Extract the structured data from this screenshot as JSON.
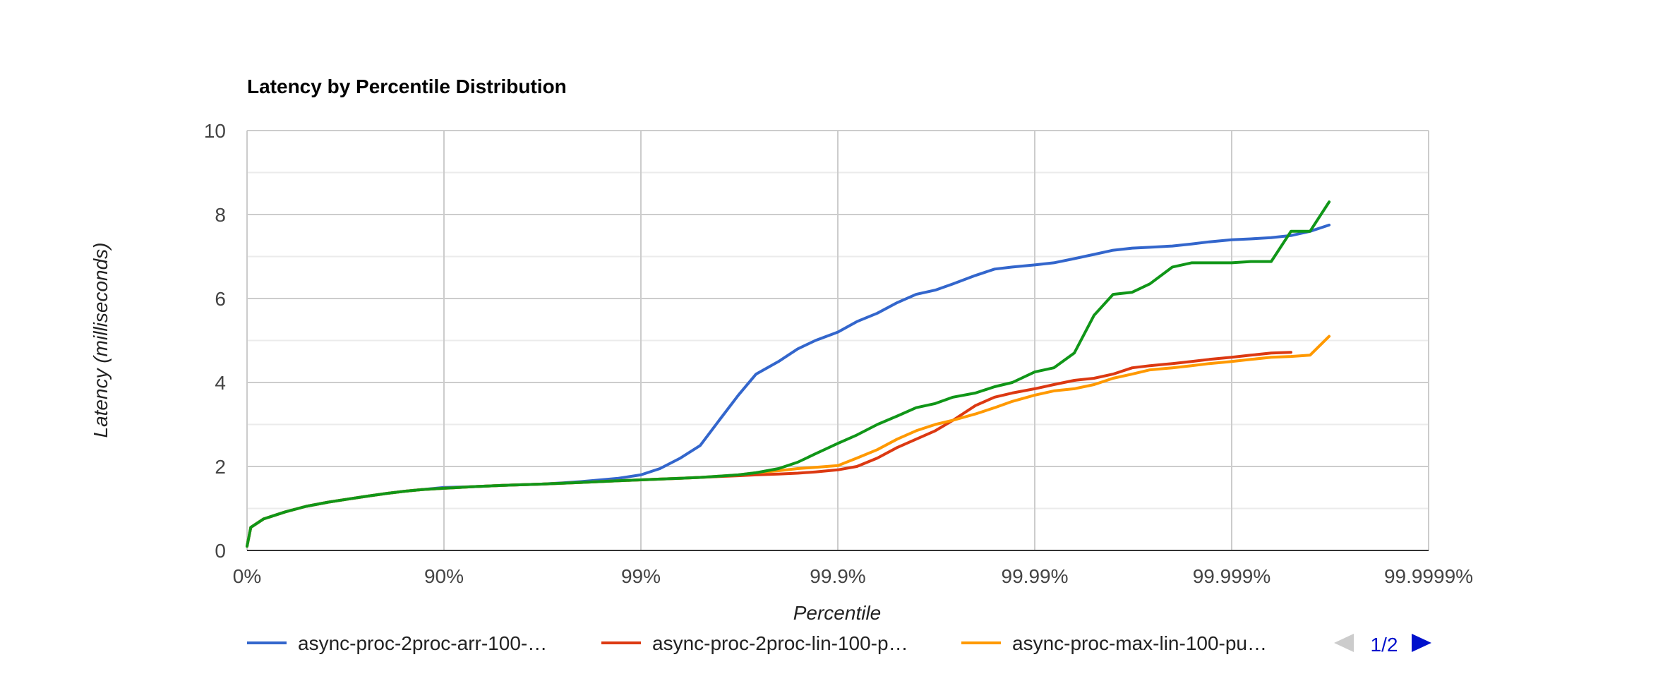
{
  "chart_data": {
    "type": "line",
    "title": "Latency by Percentile Distribution",
    "xlabel": "Percentile",
    "ylabel": "Latency (milliseconds)",
    "x_scale": "log-percentile",
    "x_ticks": [
      "0%",
      "90%",
      "99%",
      "99.9%",
      "99.99%",
      "99.999%",
      "99.9999%"
    ],
    "y_ticks": [
      0,
      2,
      4,
      6,
      8,
      10
    ],
    "ylim": [
      0,
      10
    ],
    "grid": true,
    "legend_position": "bottom",
    "legend_page": "1/2",
    "series": [
      {
        "name": "async-proc-2proc-arr-100-…",
        "color": "#3366cc",
        "x": [
          "0%",
          "1.7%",
          "7.5%",
          "17.5%",
          "27%",
          "37%",
          "47%",
          "56%",
          "64%",
          "72%",
          "80%",
          "90%",
          "92.9%",
          "95%",
          "96.8%",
          "97.5%",
          "98%",
          "98.4%",
          "98.7%",
          "99%",
          "99.2%",
          "99.37%",
          "99.5%",
          "99.6%",
          "99.68%",
          "99.74%",
          "99.8%",
          "99.84%",
          "99.87%",
          "99.9%",
          "99.92%",
          "99.937%",
          "99.95%",
          "99.96%",
          "99.968%",
          "99.974%",
          "99.98%",
          "99.984%",
          "99.987%",
          "99.99%",
          "99.992%",
          "99.9937%",
          "99.995%",
          "99.996%",
          "99.9968%",
          "99.9974%",
          "99.998%",
          "99.9984%",
          "99.9987%",
          "99.999%",
          "99.9992%",
          "99.99937%",
          "99.9995%",
          "99.9996%",
          "99.99968%"
        ],
        "values": [
          0.1,
          0.55,
          0.75,
          0.92,
          1.05,
          1.15,
          1.23,
          1.3,
          1.36,
          1.41,
          1.45,
          1.5,
          1.52,
          1.55,
          1.58,
          1.61,
          1.64,
          1.68,
          1.72,
          1.8,
          1.95,
          2.2,
          2.5,
          3.1,
          3.7,
          4.2,
          4.5,
          4.8,
          5.0,
          5.2,
          5.45,
          5.65,
          5.9,
          6.1,
          6.2,
          6.35,
          6.55,
          6.7,
          6.75,
          6.8,
          6.85,
          6.95,
          7.05,
          7.15,
          7.2,
          7.22,
          7.25,
          7.3,
          7.35,
          7.4,
          7.42,
          7.45,
          7.5,
          7.6,
          7.75
        ]
      },
      {
        "name": "async-proc-2proc-lin-100-p…",
        "color": "#dc3912",
        "x": [
          "0%",
          "1.7%",
          "7.5%",
          "17.5%",
          "27%",
          "37%",
          "47%",
          "56%",
          "64%",
          "72%",
          "80%",
          "90%",
          "92.9%",
          "95%",
          "96.8%",
          "97.5%",
          "98%",
          "98.4%",
          "98.7%",
          "99%",
          "99.2%",
          "99.37%",
          "99.5%",
          "99.6%",
          "99.68%",
          "99.74%",
          "99.8%",
          "99.84%",
          "99.87%",
          "99.9%",
          "99.92%",
          "99.937%",
          "99.95%",
          "99.96%",
          "99.968%",
          "99.974%",
          "99.98%",
          "99.984%",
          "99.987%",
          "99.99%",
          "99.992%",
          "99.9937%",
          "99.995%",
          "99.996%",
          "99.9968%",
          "99.9974%",
          "99.998%",
          "99.9984%",
          "99.9987%",
          "99.999%",
          "99.9992%",
          "99.99937%",
          "99.9995%"
        ],
        "values": [
          0.1,
          0.55,
          0.75,
          0.92,
          1.05,
          1.15,
          1.23,
          1.3,
          1.36,
          1.41,
          1.45,
          1.48,
          1.52,
          1.55,
          1.58,
          1.6,
          1.62,
          1.64,
          1.66,
          1.68,
          1.7,
          1.72,
          1.74,
          1.76,
          1.78,
          1.8,
          1.82,
          1.84,
          1.87,
          1.92,
          2.0,
          2.2,
          2.45,
          2.65,
          2.85,
          3.1,
          3.45,
          3.65,
          3.75,
          3.85,
          3.95,
          4.05,
          4.1,
          4.2,
          4.35,
          4.4,
          4.45,
          4.5,
          4.55,
          4.6,
          4.65,
          4.7,
          4.72
        ]
      },
      {
        "name": "async-proc-max-lin-100-pu…",
        "color": "#ff9900",
        "x": [
          "0%",
          "1.7%",
          "7.5%",
          "17.5%",
          "27%",
          "37%",
          "47%",
          "56%",
          "64%",
          "72%",
          "80%",
          "90%",
          "92.9%",
          "95%",
          "96.8%",
          "97.5%",
          "98%",
          "98.4%",
          "98.7%",
          "99%",
          "99.2%",
          "99.37%",
          "99.5%",
          "99.6%",
          "99.68%",
          "99.74%",
          "99.8%",
          "99.84%",
          "99.87%",
          "99.9%",
          "99.92%",
          "99.937%",
          "99.95%",
          "99.96%",
          "99.968%",
          "99.974%",
          "99.98%",
          "99.984%",
          "99.987%",
          "99.99%",
          "99.992%",
          "99.9937%",
          "99.995%",
          "99.996%",
          "99.9968%",
          "99.9974%",
          "99.998%",
          "99.9984%",
          "99.9987%",
          "99.999%",
          "99.9992%",
          "99.99937%",
          "99.9995%",
          "99.9996%",
          "99.99968%"
        ],
        "values": [
          0.1,
          0.55,
          0.75,
          0.92,
          1.05,
          1.15,
          1.23,
          1.3,
          1.36,
          1.41,
          1.45,
          1.48,
          1.52,
          1.55,
          1.58,
          1.6,
          1.62,
          1.64,
          1.66,
          1.68,
          1.7,
          1.72,
          1.74,
          1.77,
          1.8,
          1.85,
          1.9,
          1.95,
          1.98,
          2.02,
          2.2,
          2.4,
          2.65,
          2.85,
          3.0,
          3.1,
          3.25,
          3.4,
          3.55,
          3.7,
          3.8,
          3.85,
          3.95,
          4.1,
          4.2,
          4.3,
          4.35,
          4.4,
          4.45,
          4.5,
          4.55,
          4.6,
          4.62,
          4.65,
          5.1
        ]
      },
      {
        "name": "",
        "color": "#109618",
        "x": [
          "0%",
          "1.7%",
          "7.5%",
          "17.5%",
          "27%",
          "37%",
          "47%",
          "56%",
          "64%",
          "72%",
          "80%",
          "90%",
          "92.9%",
          "95%",
          "96.8%",
          "97.5%",
          "98%",
          "98.4%",
          "98.7%",
          "99%",
          "99.2%",
          "99.37%",
          "99.5%",
          "99.6%",
          "99.68%",
          "99.74%",
          "99.8%",
          "99.84%",
          "99.87%",
          "99.9%",
          "99.92%",
          "99.937%",
          "99.95%",
          "99.96%",
          "99.968%",
          "99.974%",
          "99.98%",
          "99.984%",
          "99.987%",
          "99.99%",
          "99.992%",
          "99.9937%",
          "99.995%",
          "99.996%",
          "99.9968%",
          "99.9974%",
          "99.998%",
          "99.9984%",
          "99.9987%",
          "99.999%",
          "99.9992%",
          "99.99937%",
          "99.9995%",
          "99.9996%",
          "99.99968%"
        ],
        "values": [
          0.1,
          0.55,
          0.75,
          0.92,
          1.05,
          1.15,
          1.23,
          1.3,
          1.36,
          1.41,
          1.45,
          1.48,
          1.52,
          1.55,
          1.58,
          1.6,
          1.62,
          1.64,
          1.66,
          1.68,
          1.7,
          1.72,
          1.74,
          1.77,
          1.8,
          1.85,
          1.95,
          2.1,
          2.3,
          2.55,
          2.75,
          3.0,
          3.2,
          3.4,
          3.5,
          3.65,
          3.75,
          3.9,
          4.0,
          4.25,
          4.35,
          4.7,
          5.6,
          6.1,
          6.15,
          6.35,
          6.75,
          6.85,
          6.85,
          6.85,
          6.88,
          6.88,
          7.6,
          7.6,
          8.3
        ]
      }
    ]
  }
}
